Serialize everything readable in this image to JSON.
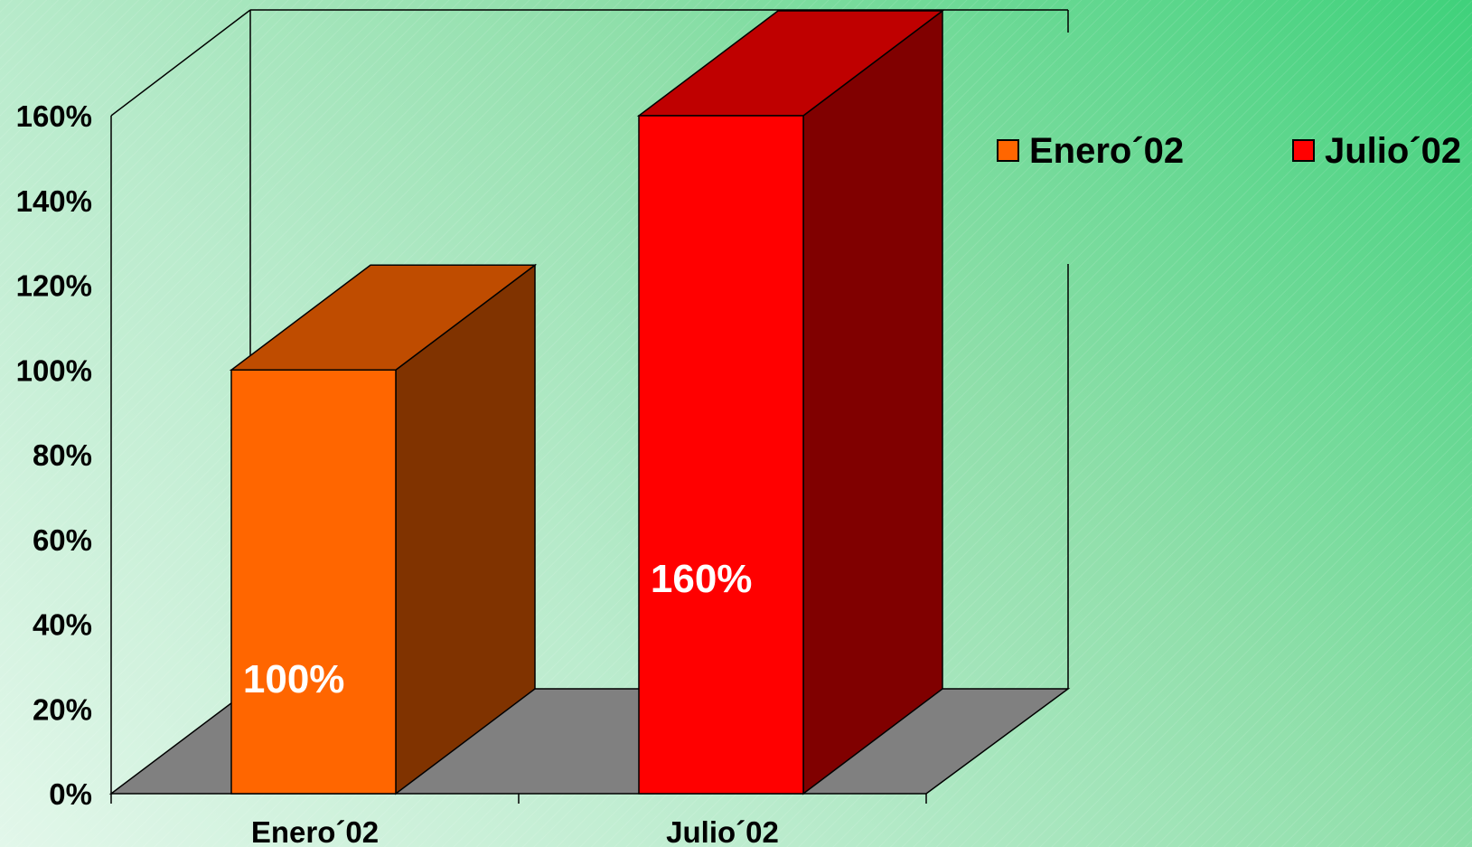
{
  "chart_data": {
    "type": "bar",
    "three_d": true,
    "categories": [
      "Enero´02",
      "Julio´02"
    ],
    "series": [
      {
        "name": "Enero´02",
        "category": "Enero´02",
        "value": 100,
        "label": "100%",
        "colors": {
          "front": "#ff6600",
          "top": "#bf4c00",
          "side": "#803300"
        }
      },
      {
        "name": "Julio´02",
        "category": "Julio´02",
        "value": 160,
        "label": "160%",
        "colors": {
          "front": "#ff0000",
          "top": "#bf0000",
          "side": "#800000"
        }
      }
    ],
    "y_ticks": [
      "0%",
      "20%",
      "40%",
      "60%",
      "80%",
      "100%",
      "120%",
      "140%",
      "160%"
    ],
    "ylim": [
      0,
      160
    ],
    "y_unit": "%",
    "grid": false,
    "legend_position": "top-right",
    "colors": {
      "floor": "#808080",
      "frame": "#000000"
    }
  }
}
